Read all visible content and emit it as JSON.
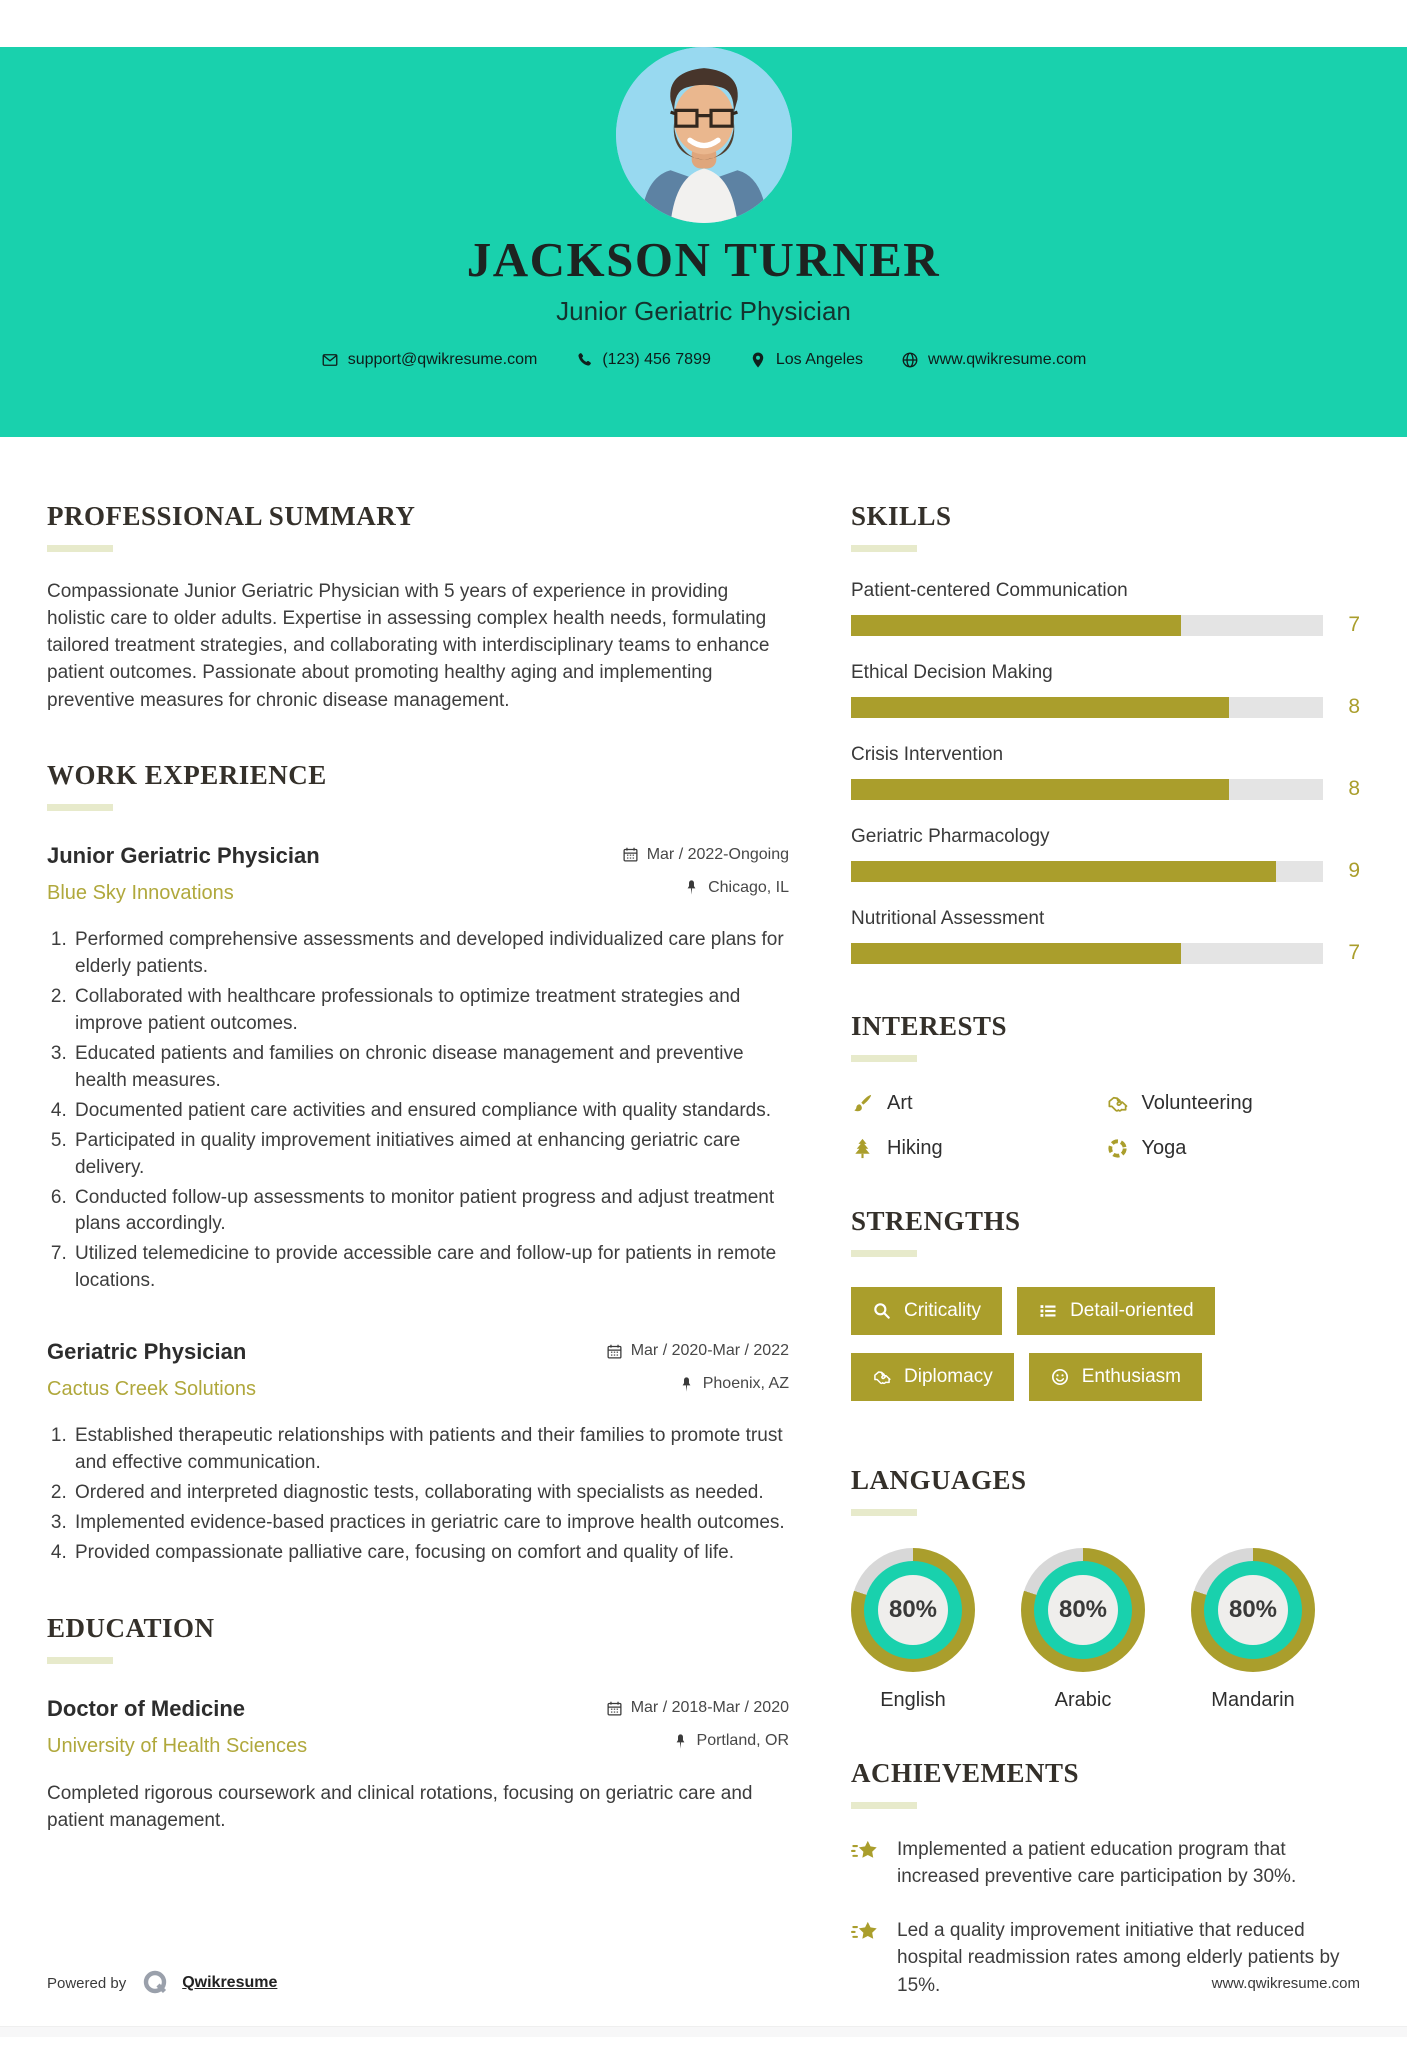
{
  "theme": {
    "teal": "#19d1ad",
    "olive": "#aa9e2c",
    "company_olive": "#b0a83c",
    "heading_underline": "#e7eacb",
    "bar_track": "#e4e4e4",
    "donut_remainder": "#d8d8d8"
  },
  "header": {
    "name": "JACKSON TURNER",
    "title": "Junior Geriatric Physician",
    "contact": {
      "email": "support@qwikresume.com",
      "phone": "(123) 456 7899",
      "location": "Los Angeles",
      "website": "www.qwikresume.com"
    }
  },
  "summary": {
    "heading": "PROFESSIONAL SUMMARY",
    "text": "Compassionate Junior Geriatric Physician with 5 years of experience in providing holistic care to older adults. Expertise in assessing complex health needs, formulating tailored treatment strategies, and collaborating with interdisciplinary teams to enhance patient outcomes. Passionate about promoting healthy aging and implementing preventive measures for chronic disease management."
  },
  "work": {
    "heading": "WORK EXPERIENCE",
    "jobs": [
      {
        "title": "Junior Geriatric Physician",
        "company": "Blue Sky Innovations",
        "dates": "Mar / 2022-Ongoing",
        "location": "Chicago, IL",
        "bullets": [
          "Performed comprehensive assessments and developed individualized care plans for elderly patients.",
          "Collaborated with healthcare professionals to optimize treatment strategies and improve patient outcomes.",
          "Educated patients and families on chronic disease management and preventive health measures.",
          "Documented patient care activities and ensured compliance with quality standards.",
          "Participated in quality improvement initiatives aimed at enhancing geriatric care delivery.",
          "Conducted follow-up assessments to monitor patient progress and adjust treatment plans accordingly.",
          "Utilized telemedicine to provide accessible care and follow-up for patients in remote locations."
        ]
      },
      {
        "title": "Geriatric Physician",
        "company": "Cactus Creek Solutions",
        "dates": "Mar / 2020-Mar / 2022",
        "location": "Phoenix, AZ",
        "bullets": [
          "Established therapeutic relationships with patients and their families to promote trust and effective communication.",
          "Ordered and interpreted diagnostic tests, collaborating with specialists as needed.",
          "Implemented evidence-based practices in geriatric care to improve health outcomes.",
          "Provided compassionate palliative care, focusing on comfort and quality of life."
        ]
      }
    ]
  },
  "education": {
    "heading": "EDUCATION",
    "degree": "Doctor of Medicine",
    "school": "University of Health Sciences",
    "dates": "Mar / 2018-Mar / 2020",
    "location": "Portland, OR",
    "description": "Completed rigorous coursework and clinical rotations, focusing on geriatric care and patient management."
  },
  "skills": {
    "heading": "SKILLS",
    "max": 10,
    "items": [
      {
        "label": "Patient-centered Communication",
        "value": 7
      },
      {
        "label": "Ethical Decision Making",
        "value": 8
      },
      {
        "label": "Crisis Intervention",
        "value": 8
      },
      {
        "label": "Geriatric Pharmacology",
        "value": 9
      },
      {
        "label": "Nutritional Assessment",
        "value": 7
      }
    ]
  },
  "interests": {
    "heading": "INTERESTS",
    "items": [
      {
        "label": "Art",
        "icon": "paintbrush-icon"
      },
      {
        "label": "Volunteering",
        "icon": "handshake-icon"
      },
      {
        "label": "Hiking",
        "icon": "tree-icon"
      },
      {
        "label": "Yoga",
        "icon": "lifebuoy-icon"
      }
    ]
  },
  "strengths": {
    "heading": "STRENGTHS",
    "items": [
      {
        "label": "Criticality",
        "icon": "search-icon"
      },
      {
        "label": "Detail-oriented",
        "icon": "list-icon"
      },
      {
        "label": "Diplomacy",
        "icon": "handshake-icon"
      },
      {
        "label": "Enthusiasm",
        "icon": "smiley-icon"
      }
    ]
  },
  "languages": {
    "heading": "LANGUAGES",
    "items": [
      {
        "label": "English",
        "percent": 80,
        "percent_label": "80%"
      },
      {
        "label": "Arabic",
        "percent": 80,
        "percent_label": "80%"
      },
      {
        "label": "Mandarin",
        "percent": 80,
        "percent_label": "80%"
      }
    ]
  },
  "achievements": {
    "heading": "ACHIEVEMENTS",
    "items": [
      "Implemented a patient education program that increased preventive care participation by 30%.",
      "Led a quality improvement initiative that reduced hospital readmission rates among elderly patients by 15%."
    ]
  },
  "footer": {
    "powered_by": "Powered by",
    "brand": "Qwikresume",
    "website": "www.qwikresume.com"
  }
}
